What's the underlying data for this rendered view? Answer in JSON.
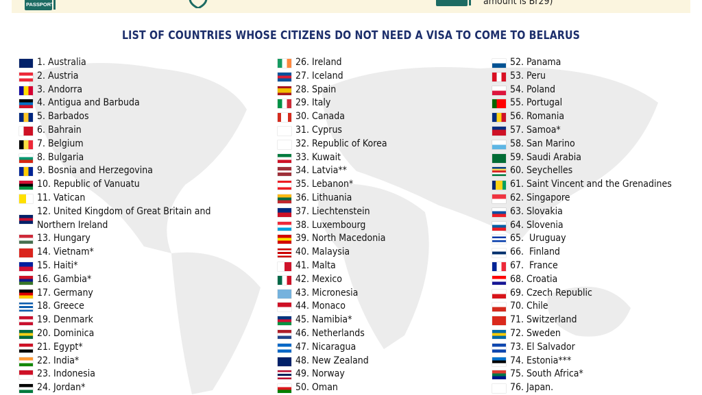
{
  "banner": {
    "passport_label": "PASSPORT",
    "right_text": "amount is Br29)",
    "accent_color": "#1d6b63",
    "background": "#fbf5df"
  },
  "title": "LIST OF COUNTRIES WHOSE CITIZENS DO NOT NEED A VISA TO COME TO BELARUS",
  "columns": [
    [
      {
        "label": "1. Australia",
        "flag": [
          "h",
          "#012169"
        ]
      },
      {
        "label": "2. Austria",
        "flag": [
          "h",
          "#ed2939",
          "#ffffff",
          "#ed2939"
        ]
      },
      {
        "label": "3. Andorra",
        "flag": [
          "v",
          "#10069f",
          "#fedf00",
          "#d50032"
        ]
      },
      {
        "label": "4. Antigua and Barbuda",
        "flag": [
          "h",
          "#000000",
          "#0072c6",
          "#ce1126"
        ]
      },
      {
        "label": "5. Barbados",
        "flag": [
          "v",
          "#00267f",
          "#ffc726",
          "#00267f"
        ]
      },
      {
        "label": "6. Bahrain",
        "flag": [
          "v",
          "#ffffff",
          "#ce1126",
          "#ce1126"
        ]
      },
      {
        "label": "7. Belgium",
        "flag": [
          "v",
          "#000000",
          "#fae042",
          "#ed2939"
        ]
      },
      {
        "label": "8. Bulgaria",
        "flag": [
          "h",
          "#ffffff",
          "#00966e",
          "#d62612"
        ]
      },
      {
        "label": "9. Bosnia and Herzegovina",
        "flag": [
          "v",
          "#002395",
          "#fecb00",
          "#002395"
        ]
      },
      {
        "label": "10. Republic of Vanuatu",
        "flag": [
          "h",
          "#d21034",
          "#000000",
          "#009543"
        ]
      },
      {
        "label": "11. Vatican",
        "flag": [
          "v",
          "#ffe000",
          "#ffffff"
        ]
      },
      {
        "label": "12. United Kingdom of Great Britain and Northern Ireland",
        "flag": [
          "h",
          "#012169",
          "#c8102e",
          "#012169"
        ],
        "wrap": true
      },
      {
        "label": "13. Hungary",
        "flag": [
          "h",
          "#ce2939",
          "#ffffff",
          "#477050"
        ]
      },
      {
        "label": "14. Vietnam*",
        "flag": [
          "h",
          "#da251d"
        ]
      },
      {
        "label": "15. Haiti*",
        "flag": [
          "h",
          "#00209f",
          "#d21034"
        ]
      },
      {
        "label": "16. Gambia*",
        "flag": [
          "h",
          "#ce1126",
          "#0c1c8c",
          "#3a7728"
        ]
      },
      {
        "label": "17. Germany",
        "flag": [
          "h",
          "#000000",
          "#dd0000",
          "#ffce00"
        ]
      },
      {
        "label": "18. Greece",
        "flag": [
          "h",
          "#0d5eaf",
          "#ffffff",
          "#0d5eaf",
          "#ffffff",
          "#0d5eaf"
        ]
      },
      {
        "label": "19. Denmark",
        "flag": [
          "h",
          "#c8102e",
          "#ffffff",
          "#c8102e"
        ]
      },
      {
        "label": "20. Dominica",
        "flag": [
          "h",
          "#006b3f",
          "#fcd116",
          "#006b3f"
        ]
      },
      {
        "label": "21. Egypt*",
        "flag": [
          "h",
          "#ce1126",
          "#ffffff",
          "#000000"
        ]
      },
      {
        "label": "22. India*",
        "flag": [
          "h",
          "#ff9933",
          "#ffffff",
          "#138808"
        ]
      },
      {
        "label": "23. Indonesia",
        "flag": [
          "h",
          "#ce1126",
          "#ffffff"
        ]
      },
      {
        "label": "24. Jordan*",
        "flag": [
          "h",
          "#000000",
          "#ffffff",
          "#007a3d"
        ]
      }
    ],
    [
      {
        "label": "26. Ireland",
        "flag": [
          "v",
          "#169b62",
          "#ffffff",
          "#ff883e"
        ]
      },
      {
        "label": "27. Iceland",
        "flag": [
          "h",
          "#02529c",
          "#dc1e35",
          "#02529c"
        ]
      },
      {
        "label": "28. Spain",
        "flag": [
          "h",
          "#aa151b",
          "#f1bf00",
          "#f1bf00",
          "#aa151b"
        ]
      },
      {
        "label": "29. Italy",
        "flag": [
          "v",
          "#009246",
          "#ffffff",
          "#ce2b37"
        ]
      },
      {
        "label": "30. Canada",
        "flag": [
          "v",
          "#d52b1e",
          "#ffffff",
          "#ffffff",
          "#d52b1e"
        ]
      },
      {
        "label": "31. Cyprus",
        "flag": [
          "h",
          "#ffffff"
        ]
      },
      {
        "label": "32. Republic of Korea",
        "flag": [
          "h",
          "#ffffff"
        ]
      },
      {
        "label": "33. Kuwait",
        "flag": [
          "h",
          "#007a3d",
          "#ffffff",
          "#ce1126"
        ]
      },
      {
        "label": "34. Latvia**",
        "flag": [
          "h",
          "#9e3039",
          "#9e3039",
          "#ffffff",
          "#9e3039",
          "#9e3039"
        ]
      },
      {
        "label": "35. Lebanon*",
        "flag": [
          "h",
          "#ed1c24",
          "#ffffff",
          "#ffffff",
          "#ed1c24"
        ]
      },
      {
        "label": "36. Lithuania",
        "flag": [
          "h",
          "#fdb913",
          "#006a44",
          "#c1272d"
        ]
      },
      {
        "label": "37. Liechtenstein",
        "flag": [
          "h",
          "#002b7f",
          "#ce1126"
        ]
      },
      {
        "label": "38. Luxembourg",
        "flag": [
          "h",
          "#ed2939",
          "#ffffff",
          "#00a1de"
        ]
      },
      {
        "label": "39. North Macedonia",
        "flag": [
          "h",
          "#d20000",
          "#ffe600",
          "#d20000"
        ]
      },
      {
        "label": "40. Malaysia",
        "flag": [
          "h",
          "#cc0001",
          "#ffffff",
          "#cc0001",
          "#ffffff",
          "#cc0001"
        ]
      },
      {
        "label": "41. Malta",
        "flag": [
          "v",
          "#ffffff",
          "#cf142b"
        ]
      },
      {
        "label": "42. Mexico",
        "flag": [
          "v",
          "#006847",
          "#ffffff",
          "#ce1126"
        ]
      },
      {
        "label": "43. Micronesia",
        "flag": [
          "h",
          "#75b2dd"
        ]
      },
      {
        "label": "44. Monaco",
        "flag": [
          "h",
          "#ce1126",
          "#ffffff"
        ]
      },
      {
        "label": "45. Namibia*",
        "flag": [
          "h",
          "#003580",
          "#d21034",
          "#009543"
        ]
      },
      {
        "label": "46. Netherlands",
        "flag": [
          "h",
          "#ae1c28",
          "#ffffff",
          "#21468b"
        ]
      },
      {
        "label": "47. Nicaragua",
        "flag": [
          "h",
          "#0067c6",
          "#ffffff",
          "#0067c6"
        ]
      },
      {
        "label": "48. New Zealand",
        "flag": [
          "h",
          "#012169"
        ]
      },
      {
        "label": "49. Norway",
        "flag": [
          "h",
          "#ba0c2f",
          "#ffffff",
          "#00205b",
          "#ffffff",
          "#ba0c2f"
        ]
      },
      {
        "label": "50. Oman",
        "flag": [
          "h",
          "#ffffff",
          "#db161b",
          "#008000"
        ]
      }
    ],
    [
      {
        "label": "52. Panama",
        "flag": [
          "h",
          "#ffffff",
          "#005293"
        ]
      },
      {
        "label": "53. Peru",
        "flag": [
          "v",
          "#d91023",
          "#ffffff",
          "#d91023"
        ]
      },
      {
        "label": "54. Poland",
        "flag": [
          "h",
          "#ffffff",
          "#dc143c"
        ]
      },
      {
        "label": "55. Portugal",
        "flag": [
          "v",
          "#006600",
          "#ff0000",
          "#ff0000"
        ]
      },
      {
        "label": "56. Romania",
        "flag": [
          "v",
          "#002b7f",
          "#fcd116",
          "#ce1126"
        ]
      },
      {
        "label": "57. Samoa*",
        "flag": [
          "h",
          "#002b7f",
          "#ce1126",
          "#ce1126"
        ]
      },
      {
        "label": "58. San Marino",
        "flag": [
          "h",
          "#ffffff",
          "#5eb6e4"
        ]
      },
      {
        "label": "59. Saudi Arabia",
        "flag": [
          "h",
          "#006c35"
        ]
      },
      {
        "label": "60. Seychelles",
        "flag": [
          "h",
          "#003f87",
          "#fcd856",
          "#d62828",
          "#ffffff",
          "#007a3d"
        ]
      },
      {
        "label": "61. Saint Vincent and the Grenadines",
        "flag": [
          "v",
          "#002674",
          "#fcd116",
          "#fcd116",
          "#009e60"
        ]
      },
      {
        "label": "62. Singapore",
        "flag": [
          "h",
          "#ef3340",
          "#ffffff"
        ]
      },
      {
        "label": "63. Slovakia",
        "flag": [
          "h",
          "#ffffff",
          "#0b4ea2",
          "#ee1c25"
        ]
      },
      {
        "label": "64. Slovenia",
        "flag": [
          "h",
          "#ffffff",
          "#005da4",
          "#ed1c24"
        ]
      },
      {
        "label": "65.  Uruguay",
        "flag": [
          "h",
          "#ffffff",
          "#0038a8",
          "#ffffff",
          "#0038a8",
          "#ffffff"
        ]
      },
      {
        "label": "66.  Finland",
        "flag": [
          "h",
          "#ffffff",
          "#002f6c",
          "#ffffff"
        ]
      },
      {
        "label": "67.  France",
        "flag": [
          "v",
          "#002395",
          "#ffffff",
          "#ed2939"
        ]
      },
      {
        "label": "68. Croatia",
        "flag": [
          "h",
          "#ff0000",
          "#ffffff",
          "#171796"
        ]
      },
      {
        "label": "69. Czech Republic",
        "flag": [
          "h",
          "#ffffff",
          "#d7141a"
        ]
      },
      {
        "label": "70. Chile",
        "flag": [
          "h",
          "#ffffff",
          "#d52b1e"
        ]
      },
      {
        "label": "71. Switzerland",
        "flag": [
          "h",
          "#da291c"
        ]
      },
      {
        "label": "72. Sweden",
        "flag": [
          "h",
          "#006aa7",
          "#fecc00",
          "#006aa7"
        ]
      },
      {
        "label": "73. El Salvador",
        "flag": [
          "h",
          "#0f47af",
          "#ffffff",
          "#0f47af"
        ]
      },
      {
        "label": "74. Estonia***",
        "flag": [
          "h",
          "#0072ce",
          "#000000",
          "#ffffff"
        ]
      },
      {
        "label": "75. South Africa*",
        "flag": [
          "h",
          "#e03c31",
          "#007749",
          "#001489"
        ]
      },
      {
        "label": "76. Japan.",
        "flag": [
          "h",
          "#ffffff"
        ]
      }
    ]
  ]
}
